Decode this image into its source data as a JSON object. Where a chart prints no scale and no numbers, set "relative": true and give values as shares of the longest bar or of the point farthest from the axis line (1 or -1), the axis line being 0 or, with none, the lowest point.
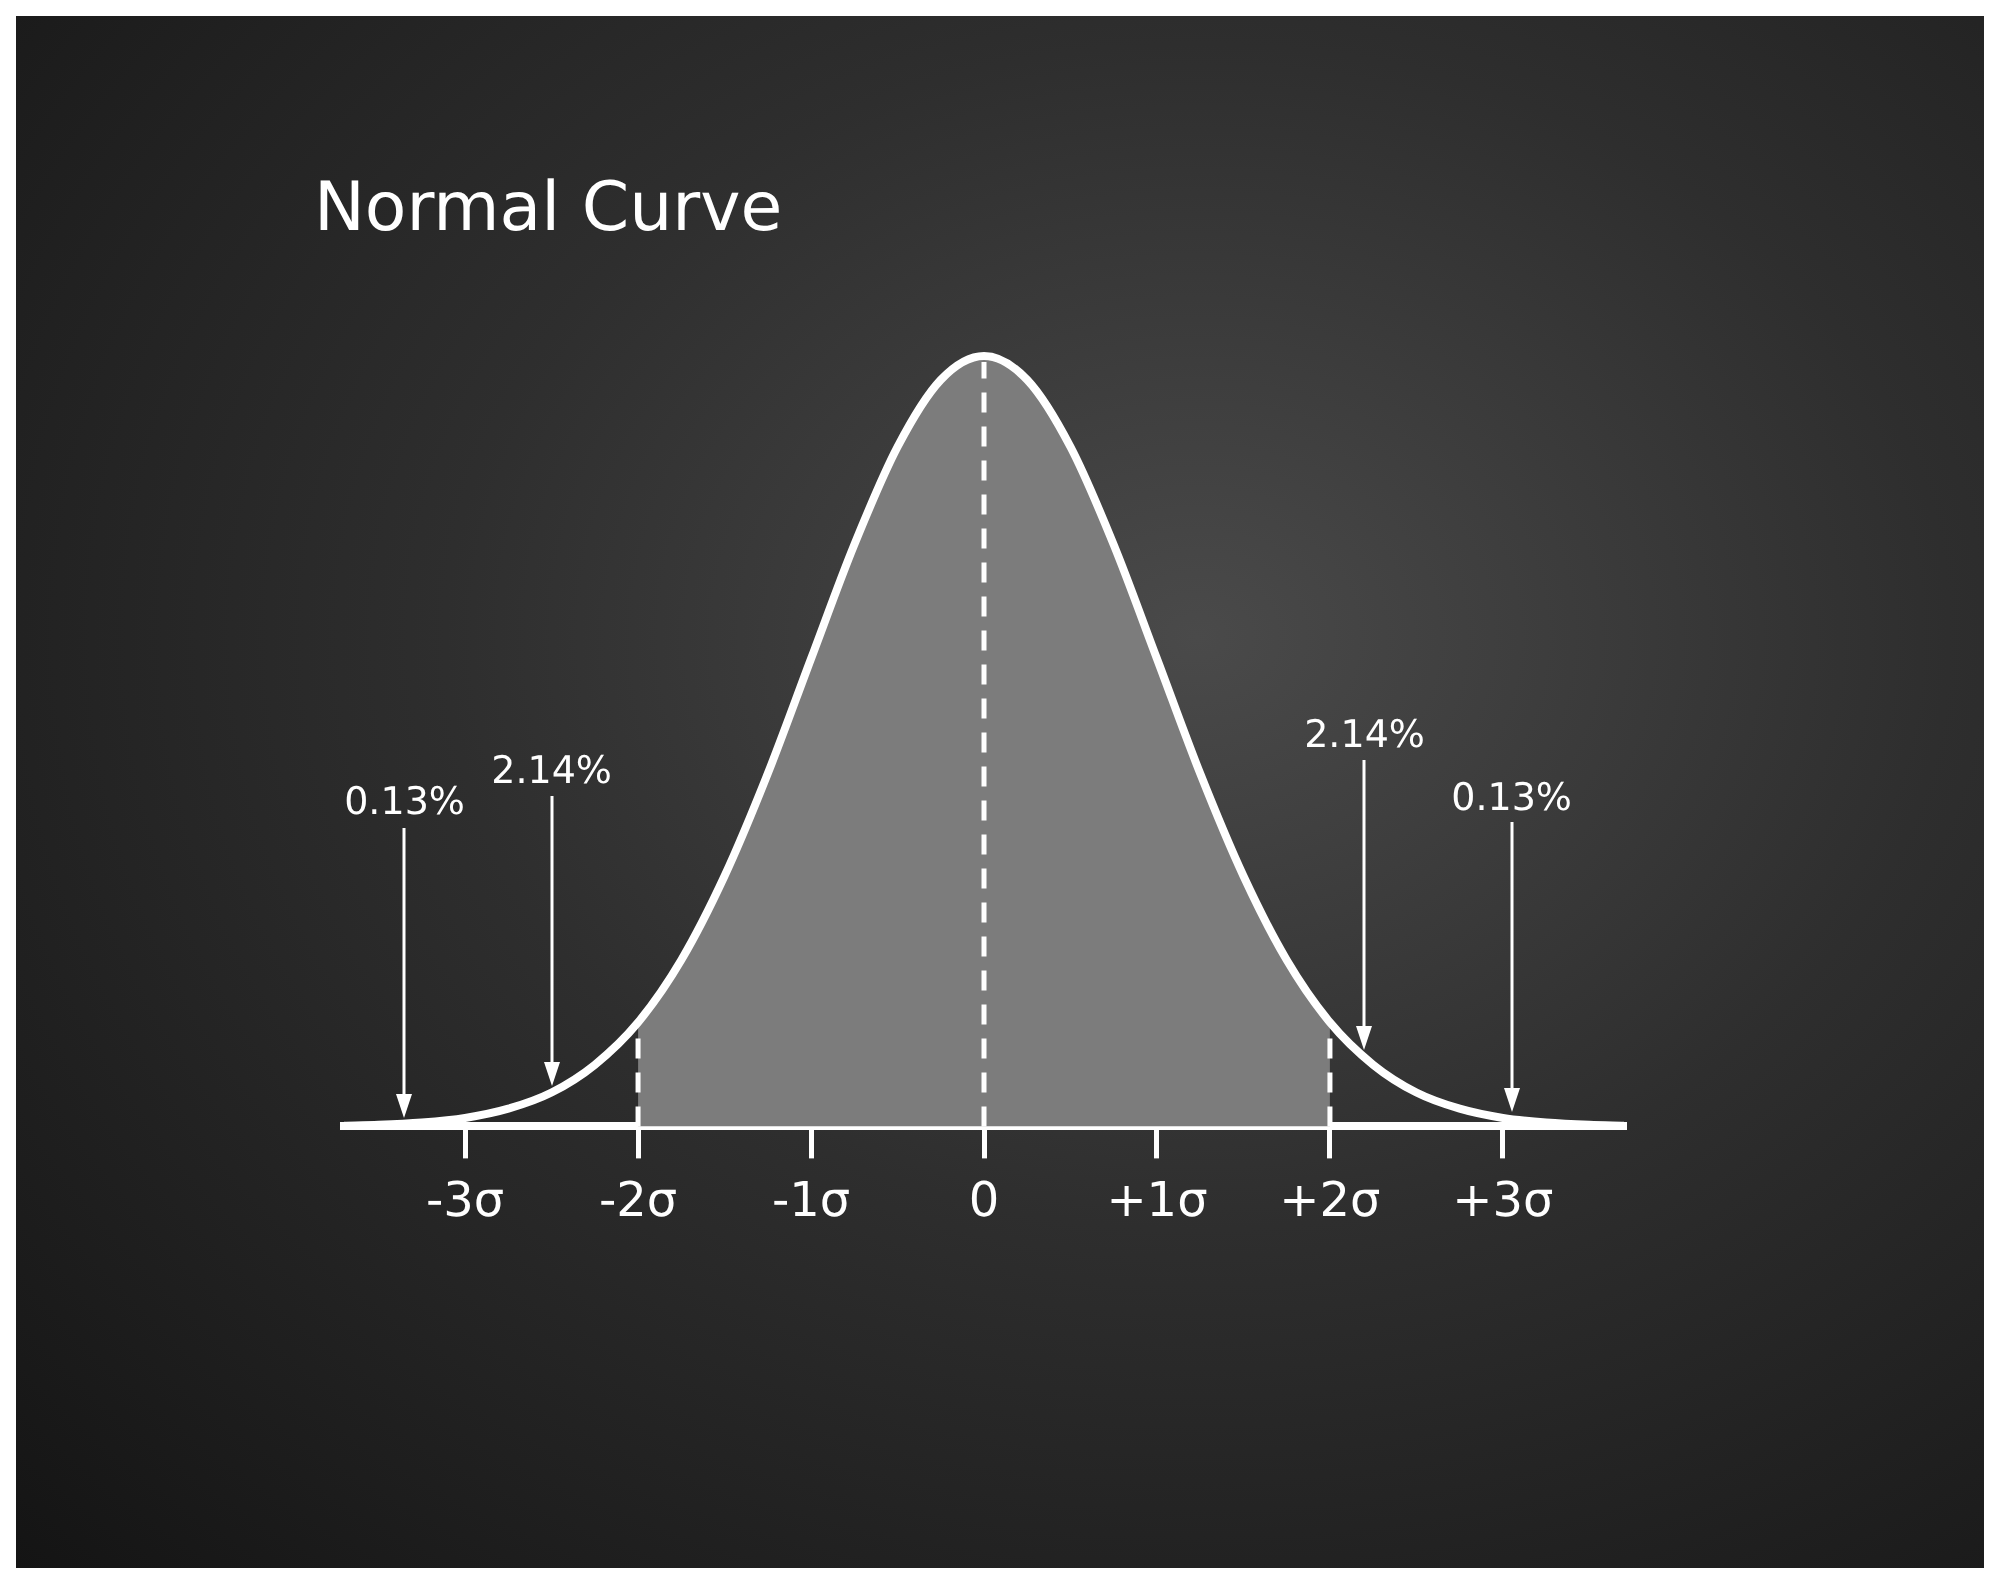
{
  "chart_data": {
    "type": "line",
    "title": "Normal Curve",
    "relative": true,
    "xlim": [
      -3.7,
      3.7
    ],
    "xticks": [
      {
        "value": -3,
        "label": "-3σ"
      },
      {
        "value": -2,
        "label": "-2σ"
      },
      {
        "value": -1,
        "label": "-1σ"
      },
      0,
      {
        "value": 1,
        "label": "+1σ"
      },
      {
        "value": 2,
        "label": "+2σ"
      },
      {
        "value": 3,
        "label": "+3σ"
      }
    ],
    "series": [
      {
        "type": "area",
        "color": "#7c7c7c",
        "x": [
          -2,
          -1.75,
          -1.5,
          -1.25,
          -1,
          -0.75,
          -0.5,
          -0.25,
          0,
          0.25,
          0.5,
          0.75,
          1,
          1.25,
          1.5,
          1.75,
          2
        ],
        "values": [
          0.135,
          0.216,
          0.325,
          0.458,
          0.607,
          0.755,
          0.882,
          0.969,
          1,
          0.969,
          0.882,
          0.755,
          0.607,
          0.458,
          0.325,
          0.216,
          0.135
        ]
      },
      {
        "color": "#ffffff",
        "x": [
          -3.7,
          -3.5,
          -3.25,
          -3,
          -2.75,
          -2.5,
          -2.25,
          -2,
          -1.75,
          -1.5,
          -1.25,
          -1,
          -0.75,
          -0.5,
          -0.25,
          0,
          0.25,
          0.5,
          0.75,
          1,
          1.25,
          1.5,
          1.75,
          2,
          2.25,
          2.5,
          2.75,
          3,
          3.25,
          3.5,
          3.7
        ],
        "values": [
          0.001,
          0.002,
          0.005,
          0.011,
          0.023,
          0.044,
          0.08,
          0.135,
          0.216,
          0.325,
          0.458,
          0.607,
          0.755,
          0.882,
          0.969,
          1,
          0.969,
          0.882,
          0.755,
          0.607,
          0.458,
          0.325,
          0.216,
          0.135,
          0.08,
          0.044,
          0.023,
          0.011,
          0.005,
          0.002,
          0.001
        ]
      }
    ],
    "ref_lines": [
      {
        "axis": "x",
        "value": -2,
        "line_style": "dashed",
        "color": "#ffffff"
      },
      {
        "axis": "x",
        "value": 0,
        "line_style": "dashed",
        "color": "#ffffff"
      },
      {
        "axis": "x",
        "value": 2,
        "line_style": "dashed",
        "color": "#ffffff"
      }
    ],
    "annotations": [
      "0.13%",
      "2.14%",
      "2.14%",
      "0.13%"
    ],
    "grid": false,
    "legend": false
  }
}
